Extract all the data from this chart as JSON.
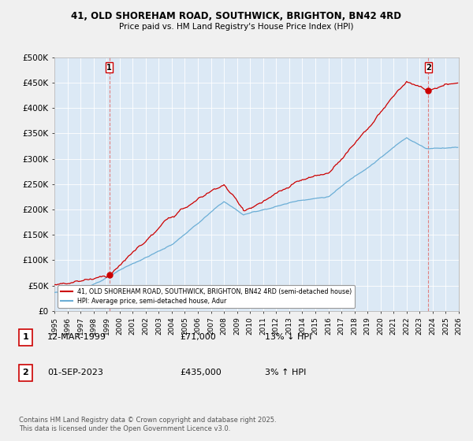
{
  "title": "41, OLD SHOREHAM ROAD, SOUTHWICK, BRIGHTON, BN42 4RD",
  "subtitle": "Price paid vs. HM Land Registry's House Price Index (HPI)",
  "legend_line1": "41, OLD SHOREHAM ROAD, SOUTHWICK, BRIGHTON, BN42 4RD (semi-detached house)",
  "legend_line2": "HPI: Average price, semi-detached house, Adur",
  "footnote": "Contains HM Land Registry data © Crown copyright and database right 2025.\nThis data is licensed under the Open Government Licence v3.0.",
  "sale1_date": "12-MAR-1999",
  "sale1_price": "£71,000",
  "sale1_hpi": "13% ↓ HPI",
  "sale2_date": "01-SEP-2023",
  "sale2_price": "£435,000",
  "sale2_hpi": "3% ↑ HPI",
  "sale1_x": 1999.2,
  "sale2_x": 2023.67,
  "ylim": [
    0,
    500000
  ],
  "yticks": [
    0,
    50000,
    100000,
    150000,
    200000,
    250000,
    300000,
    350000,
    400000,
    450000,
    500000
  ],
  "xlim": [
    1995,
    2026
  ],
  "hpi_color": "#6baed6",
  "price_color": "#cc0000",
  "vline_color": "#e08080",
  "background_color": "#f0f0f0",
  "plot_bg_color": "#dce9f5",
  "grid_color": "#ffffff"
}
